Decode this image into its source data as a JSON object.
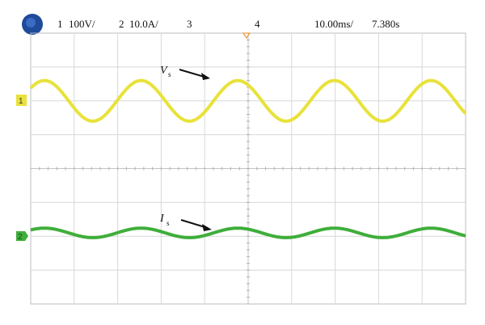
{
  "status_bar": {
    "ch1": {
      "number": "1",
      "scale": "100V/",
      "color": "#e8e23a"
    },
    "ch2": {
      "number": "2",
      "scale": "10.0A/",
      "color": "#3fae3a"
    },
    "ch3": {
      "number": "3",
      "color": "#2e79c7"
    },
    "ch4": {
      "number": "4",
      "color": "#a04ab0"
    },
    "timebase": "10.00ms/",
    "time_position": "7.380s"
  },
  "markers": {
    "ch1": "1",
    "ch2": "2"
  },
  "chart_data": {
    "type": "line",
    "grid": true,
    "x_divisions": 10,
    "y_divisions": 8,
    "time_per_division": "10.00ms/",
    "series": [
      {
        "channel": "1",
        "color": "#e8e23a",
        "annotation": "V",
        "annotation_sub": "s",
        "cycles_on_screen": 4.5,
        "center_div": 2.0,
        "amplitude_div": 0.6
      },
      {
        "channel": "2",
        "color": "#3fae3a",
        "annotation": "I",
        "annotation_sub": "s",
        "cycles_on_screen": 4.5,
        "center_div": 5.9,
        "amplitude_div": 0.14
      }
    ]
  }
}
